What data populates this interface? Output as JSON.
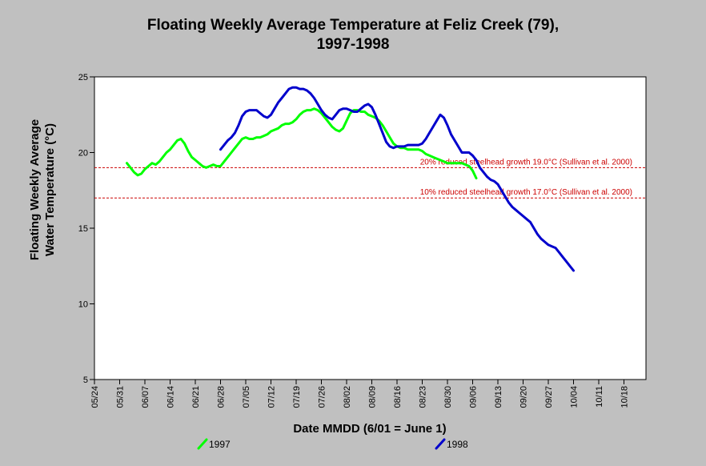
{
  "chart_data": {
    "type": "line",
    "title_lines": [
      "Floating Weekly Average Temperature at Feliz Creek (79),",
      "1997-1998"
    ],
    "xlabel": "Date MMDD (6/01 = June 1)",
    "ylabel_lines": [
      "Floating Weekly Average",
      "Water Temperature (°C)"
    ],
    "x_tick_labels": [
      "05/24",
      "05/31",
      "06/07",
      "06/14",
      "06/21",
      "06/28",
      "07/05",
      "07/12",
      "07/19",
      "07/26",
      "08/02",
      "08/09",
      "08/16",
      "08/23",
      "08/30",
      "09/06",
      "09/13",
      "09/20",
      "09/27",
      "10/04",
      "10/11",
      "10/18"
    ],
    "x_unit": "days from 05/24",
    "xlim": [
      0,
      154
    ],
    "ylim": [
      5,
      25
    ],
    "y_ticks": [
      5,
      10,
      15,
      20,
      25
    ],
    "grid": false,
    "legend_position": "bottom",
    "reference_lines": [
      {
        "y": 19.0,
        "label": "20% reduced steelhead growth 19.0°C (Sullivan et al. 2000)",
        "color": "#cc0000"
      },
      {
        "y": 17.0,
        "label": "10% reduced steelhead growth 17.0°C (Sullivan et al. 2000)",
        "color": "#cc0000"
      }
    ],
    "series": [
      {
        "name": "1997",
        "color": "#00ff00",
        "points": [
          [
            9,
            19.3
          ],
          [
            10,
            19.0
          ],
          [
            11,
            18.7
          ],
          [
            12,
            18.5
          ],
          [
            13,
            18.6
          ],
          [
            14,
            18.9
          ],
          [
            15,
            19.1
          ],
          [
            16,
            19.3
          ],
          [
            17,
            19.2
          ],
          [
            18,
            19.4
          ],
          [
            19,
            19.7
          ],
          [
            20,
            20.0
          ],
          [
            21,
            20.2
          ],
          [
            22,
            20.5
          ],
          [
            23,
            20.8
          ],
          [
            24,
            20.9
          ],
          [
            25,
            20.6
          ],
          [
            26,
            20.1
          ],
          [
            27,
            19.7
          ],
          [
            28,
            19.5
          ],
          [
            29,
            19.3
          ],
          [
            30,
            19.1
          ],
          [
            31,
            19.0
          ],
          [
            32,
            19.1
          ],
          [
            33,
            19.2
          ],
          [
            34,
            19.1
          ],
          [
            35,
            19.1
          ],
          [
            36,
            19.4
          ],
          [
            37,
            19.7
          ],
          [
            38,
            20.0
          ],
          [
            39,
            20.3
          ],
          [
            40,
            20.6
          ],
          [
            41,
            20.9
          ],
          [
            42,
            21.0
          ],
          [
            43,
            20.9
          ],
          [
            44,
            20.9
          ],
          [
            45,
            21.0
          ],
          [
            46,
            21.0
          ],
          [
            47,
            21.1
          ],
          [
            48,
            21.2
          ],
          [
            49,
            21.4
          ],
          [
            50,
            21.5
          ],
          [
            51,
            21.6
          ],
          [
            52,
            21.8
          ],
          [
            53,
            21.9
          ],
          [
            54,
            21.9
          ],
          [
            55,
            22.0
          ],
          [
            56,
            22.2
          ],
          [
            57,
            22.5
          ],
          [
            58,
            22.7
          ],
          [
            59,
            22.8
          ],
          [
            60,
            22.8
          ],
          [
            61,
            22.9
          ],
          [
            62,
            22.8
          ],
          [
            63,
            22.6
          ],
          [
            64,
            22.3
          ],
          [
            65,
            22.0
          ],
          [
            66,
            21.7
          ],
          [
            67,
            21.5
          ],
          [
            68,
            21.4
          ],
          [
            69,
            21.6
          ],
          [
            70,
            22.1
          ],
          [
            71,
            22.6
          ],
          [
            72,
            22.8
          ],
          [
            73,
            22.8
          ],
          [
            74,
            22.7
          ],
          [
            75,
            22.7
          ],
          [
            76,
            22.5
          ],
          [
            77,
            22.4
          ],
          [
            78,
            22.3
          ],
          [
            79,
            22.1
          ],
          [
            80,
            21.8
          ],
          [
            81,
            21.4
          ],
          [
            82,
            21.0
          ],
          [
            83,
            20.6
          ],
          [
            84,
            20.4
          ],
          [
            85,
            20.3
          ],
          [
            86,
            20.3
          ],
          [
            87,
            20.2
          ],
          [
            88,
            20.2
          ],
          [
            89,
            20.2
          ],
          [
            90,
            20.2
          ],
          [
            91,
            20.1
          ],
          [
            92,
            19.9
          ],
          [
            93,
            19.8
          ],
          [
            94,
            19.7
          ],
          [
            95,
            19.6
          ],
          [
            96,
            19.5
          ],
          [
            97,
            19.4
          ],
          [
            98,
            19.3
          ],
          [
            99,
            19.3
          ],
          [
            100,
            19.3
          ],
          [
            101,
            19.3
          ],
          [
            102,
            19.3
          ],
          [
            103,
            19.2
          ],
          [
            104,
            19.1
          ],
          [
            105,
            18.8
          ],
          [
            106,
            18.3
          ]
        ]
      },
      {
        "name": "1998",
        "color": "#0000cc",
        "points": [
          [
            35,
            20.2
          ],
          [
            36,
            20.5
          ],
          [
            37,
            20.8
          ],
          [
            38,
            21.0
          ],
          [
            39,
            21.3
          ],
          [
            40,
            21.8
          ],
          [
            41,
            22.4
          ],
          [
            42,
            22.7
          ],
          [
            43,
            22.8
          ],
          [
            44,
            22.8
          ],
          [
            45,
            22.8
          ],
          [
            46,
            22.6
          ],
          [
            47,
            22.4
          ],
          [
            48,
            22.3
          ],
          [
            49,
            22.5
          ],
          [
            50,
            22.9
          ],
          [
            51,
            23.3
          ],
          [
            52,
            23.6
          ],
          [
            53,
            23.9
          ],
          [
            54,
            24.2
          ],
          [
            55,
            24.3
          ],
          [
            56,
            24.3
          ],
          [
            57,
            24.2
          ],
          [
            58,
            24.2
          ],
          [
            59,
            24.1
          ],
          [
            60,
            23.9
          ],
          [
            61,
            23.6
          ],
          [
            62,
            23.2
          ],
          [
            63,
            22.8
          ],
          [
            64,
            22.5
          ],
          [
            65,
            22.3
          ],
          [
            66,
            22.2
          ],
          [
            67,
            22.5
          ],
          [
            68,
            22.8
          ],
          [
            69,
            22.9
          ],
          [
            70,
            22.9
          ],
          [
            71,
            22.8
          ],
          [
            72,
            22.7
          ],
          [
            73,
            22.7
          ],
          [
            74,
            22.9
          ],
          [
            75,
            23.1
          ],
          [
            76,
            23.2
          ],
          [
            77,
            23.0
          ],
          [
            78,
            22.5
          ],
          [
            79,
            21.9
          ],
          [
            80,
            21.3
          ],
          [
            81,
            20.7
          ],
          [
            82,
            20.4
          ],
          [
            83,
            20.3
          ],
          [
            84,
            20.4
          ],
          [
            85,
            20.4
          ],
          [
            86,
            20.4
          ],
          [
            87,
            20.5
          ],
          [
            88,
            20.5
          ],
          [
            89,
            20.5
          ],
          [
            90,
            20.5
          ],
          [
            91,
            20.6
          ],
          [
            92,
            20.9
          ],
          [
            93,
            21.3
          ],
          [
            94,
            21.7
          ],
          [
            95,
            22.1
          ],
          [
            96,
            22.5
          ],
          [
            97,
            22.3
          ],
          [
            98,
            21.8
          ],
          [
            99,
            21.2
          ],
          [
            100,
            20.8
          ],
          [
            101,
            20.4
          ],
          [
            102,
            20.0
          ],
          [
            103,
            20.0
          ],
          [
            104,
            20.0
          ],
          [
            105,
            19.8
          ],
          [
            106,
            19.5
          ],
          [
            107,
            19.0
          ],
          [
            108,
            18.7
          ],
          [
            109,
            18.4
          ],
          [
            110,
            18.2
          ],
          [
            111,
            18.1
          ],
          [
            112,
            17.9
          ],
          [
            113,
            17.5
          ],
          [
            114,
            17.1
          ],
          [
            115,
            16.7
          ],
          [
            116,
            16.4
          ],
          [
            117,
            16.2
          ],
          [
            118,
            16.0
          ],
          [
            119,
            15.8
          ],
          [
            120,
            15.6
          ],
          [
            121,
            15.4
          ],
          [
            122,
            15.0
          ],
          [
            123,
            14.6
          ],
          [
            124,
            14.3
          ],
          [
            125,
            14.1
          ],
          [
            126,
            13.9
          ],
          [
            127,
            13.8
          ],
          [
            128,
            13.7
          ],
          [
            129,
            13.4
          ],
          [
            130,
            13.1
          ],
          [
            131,
            12.8
          ],
          [
            132,
            12.5
          ],
          [
            133,
            12.2
          ]
        ]
      }
    ]
  }
}
